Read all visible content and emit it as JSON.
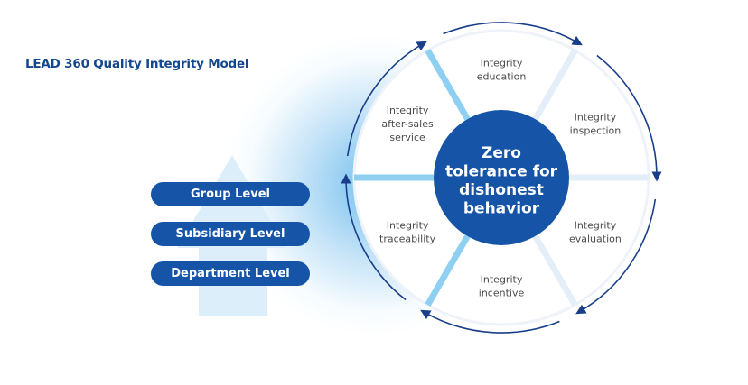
{
  "title": "LEAD 360 Quality Integrity Model",
  "levels": [
    "Group Level",
    "Subsidiary Level",
    "Department Level"
  ],
  "core": [
    "Zero",
    "tolerance for",
    "dishonest",
    "behavior"
  ],
  "segments": [
    {
      "lines": [
        "Integrity",
        "education"
      ]
    },
    {
      "lines": [
        "Integrity",
        "inspection"
      ]
    },
    {
      "lines": [
        "Integrity",
        "evaluation"
      ]
    },
    {
      "lines": [
        "Integrity",
        "incentive"
      ]
    },
    {
      "lines": [
        "Integrity",
        "traceability"
      ]
    },
    {
      "lines": [
        "Integrity",
        "after-sales",
        "service"
      ]
    }
  ],
  "colors": {
    "primary": "#1554a7",
    "title": "#13488f",
    "accent_light": "#8fd0f2",
    "arrow": "#1a3f8a"
  }
}
